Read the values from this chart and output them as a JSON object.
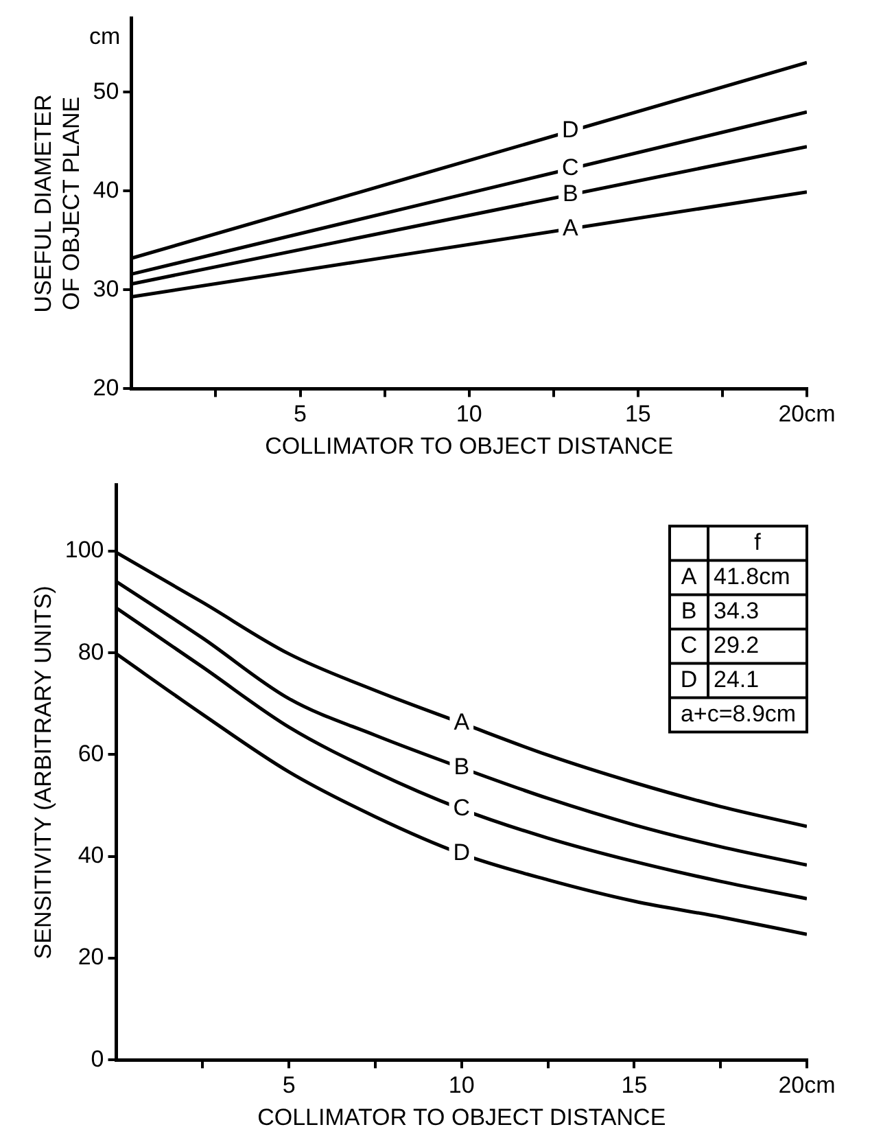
{
  "chart_data": [
    {
      "type": "line",
      "ylabel": "USEFUL DIAMETER\nOF OBJECT PLANE",
      "xlabel": "COLLIMATOR TO OBJECT DISTANCE",
      "x": [
        0,
        20
      ],
      "series": [
        {
          "name": "A",
          "color": "#000000",
          "values": [
            29.3,
            39.9
          ]
        },
        {
          "name": "B",
          "color": "#000000",
          "values": [
            30.6,
            44.5
          ]
        },
        {
          "name": "C",
          "color": "#000000",
          "values": [
            31.6,
            48.0
          ]
        },
        {
          "name": "D",
          "color": "#000000",
          "values": [
            33.2,
            53.0
          ]
        }
      ],
      "xlim": [
        0,
        20
      ],
      "ylim": [
        20,
        57.5
      ],
      "xticks": [
        {
          "value": 2.5,
          "label": null
        },
        5,
        {
          "value": 7.5,
          "label": null
        },
        10,
        {
          "value": 12.5,
          "label": null
        },
        15,
        {
          "value": 17.5,
          "label": null
        },
        {
          "value": 20,
          "label": "20cm"
        }
      ],
      "yticks": [
        20,
        30,
        40,
        50
      ],
      "annotations": [
        "cm"
      ],
      "grid": false,
      "legend": false,
      "marker": "none",
      "line_style": "solid"
    },
    {
      "type": "line",
      "ylabel": "SENSITIVITY (ARBITRARY UNITS)",
      "xlabel": "COLLIMATOR TO OBJECT DISTANCE",
      "x": [
        0,
        2.5,
        5,
        7.5,
        10,
        12.5,
        15,
        17.5,
        20
      ],
      "series": [
        {
          "name": "A",
          "color": "#000000",
          "values": [
            99.7,
            89.9,
            79.8,
            72.6,
            66.2,
            59.9,
            54.5,
            49.8,
            45.9
          ]
        },
        {
          "name": "B",
          "color": "#000000",
          "values": [
            94.0,
            82.9,
            71.0,
            63.8,
            57.4,
            51.4,
            46.2,
            41.9,
            38.3
          ]
        },
        {
          "name": "C",
          "color": "#000000",
          "values": [
            88.8,
            77.2,
            65.4,
            56.6,
            49.3,
            43.6,
            39.0,
            35.1,
            31.7
          ]
        },
        {
          "name": "D",
          "color": "#000000",
          "values": [
            79.8,
            67.9,
            56.6,
            47.8,
            40.5,
            35.4,
            31.2,
            28.1,
            24.7
          ]
        }
      ],
      "xlim": [
        0,
        20
      ],
      "ylim": [
        0,
        113
      ],
      "xticks": [
        {
          "value": 2.5,
          "label": null
        },
        5,
        {
          "value": 7.5,
          "label": null
        },
        10,
        {
          "value": 12.5,
          "label": null
        },
        15,
        {
          "value": 17.5,
          "label": null
        },
        {
          "value": 20,
          "label": "20cm"
        }
      ],
      "yticks": [
        0,
        20,
        40,
        60,
        80,
        100
      ],
      "annotations": [
        "f",
        "41.8cm",
        "34.3",
        "29.2",
        "24.1",
        "a+c=8.9cm"
      ],
      "grid": false,
      "legend": false,
      "marker": "none",
      "line_style": "solid"
    }
  ]
}
